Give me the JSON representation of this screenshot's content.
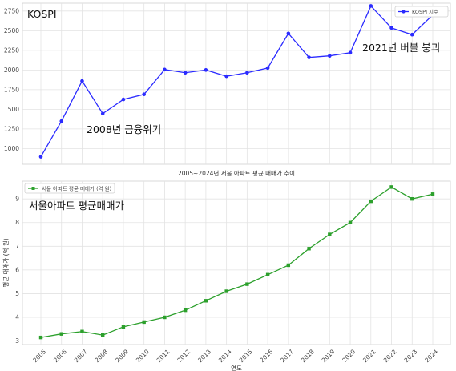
{
  "chart_data": [
    {
      "type": "line",
      "title": "",
      "xlabel": "",
      "ylabel": "",
      "x": [
        2005,
        2006,
        2007,
        2008,
        2009,
        2010,
        2011,
        2012,
        2013,
        2014,
        2015,
        2016,
        2017,
        2018,
        2019,
        2020,
        2021,
        2022,
        2023,
        2024
      ],
      "series": [
        {
          "name": "KOSPI 지수",
          "color": "#2b2bff",
          "values": [
            896,
            1350,
            1860,
            1445,
            1625,
            1690,
            2005,
            1965,
            2000,
            1920,
            1965,
            2025,
            2465,
            2160,
            2180,
            2220,
            2815,
            2535,
            2450,
            2700
          ]
        }
      ],
      "ylim": [
        800,
        2850
      ],
      "yticks": [
        1000,
        1250,
        1500,
        1750,
        2000,
        2250,
        2500,
        2750
      ],
      "grid": true,
      "legend": "top-right",
      "annotations": [
        {
          "text": "KOSPI"
        },
        {
          "text": "2008년 금융위기"
        },
        {
          "text": "2021년 버블 붕괴"
        }
      ]
    },
    {
      "type": "line",
      "title": "2005~2024년 서울 아파트 평균 매매가 추이",
      "xlabel": "연도",
      "ylabel": "평균 매매가 (억 원)",
      "x": [
        2005,
        2006,
        2007,
        2008,
        2009,
        2010,
        2011,
        2012,
        2013,
        2014,
        2015,
        2016,
        2017,
        2018,
        2019,
        2020,
        2021,
        2022,
        2023,
        2024
      ],
      "series": [
        {
          "name": "서울 아파트 평균 매매가 (억 원)",
          "color": "#2ca02c",
          "values": [
            3.15,
            3.3,
            3.4,
            3.25,
            3.6,
            3.8,
            4.0,
            4.3,
            4.7,
            5.1,
            5.4,
            5.8,
            6.2,
            6.9,
            7.5,
            8.0,
            8.9,
            9.5,
            9.0,
            9.2
          ]
        }
      ],
      "ylim": [
        2.85,
        9.75
      ],
      "yticks": [
        3,
        4,
        5,
        6,
        7,
        8,
        9
      ],
      "grid": true,
      "legend": "top-left",
      "annotations": [
        {
          "text": "서울아파트 평균매매가"
        }
      ]
    }
  ]
}
